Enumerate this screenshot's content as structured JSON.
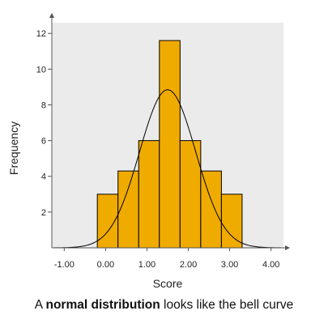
{
  "chart_data": {
    "type": "bar",
    "title": "",
    "xlabel": "Score",
    "ylabel": "Frequency",
    "xlim": [
      -1.3,
      4.3
    ],
    "ylim": [
      0,
      12.6
    ],
    "x_ticks": [
      -1,
      0,
      1,
      2,
      3,
      4
    ],
    "x_tick_labels": [
      "-1.00",
      "0.00",
      "1.00",
      "2.00",
      "3.00",
      "4.00"
    ],
    "y_ticks": [
      2,
      4,
      6,
      8,
      10,
      12
    ],
    "y_tick_labels": [
      "2",
      "4",
      "6",
      "8",
      "10",
      "12"
    ],
    "bins": [
      {
        "x0": -0.2,
        "x1": 0.3,
        "value": 3
      },
      {
        "x0": 0.3,
        "x1": 0.8,
        "value": 4.3
      },
      {
        "x0": 0.8,
        "x1": 1.3,
        "value": 6
      },
      {
        "x0": 1.3,
        "x1": 1.8,
        "value": 11.6
      },
      {
        "x0": 1.8,
        "x1": 2.3,
        "value": 6
      },
      {
        "x0": 2.3,
        "x1": 2.8,
        "value": 4.3
      },
      {
        "x0": 2.8,
        "x1": 3.3,
        "value": 3
      }
    ],
    "normal_curve": {
      "mean": 1.5,
      "sd": 0.68,
      "peak": 8.85
    },
    "grid": false,
    "colors": {
      "bar_fill": "#F0AB00",
      "bar_edge": "#000000",
      "plot_background": "#EBEBEB",
      "curve": "#000000",
      "axis": "#555555"
    }
  },
  "caption": {
    "prefix": "A ",
    "bold": "normal distribution",
    "suffix": " looks like the bell curve"
  }
}
